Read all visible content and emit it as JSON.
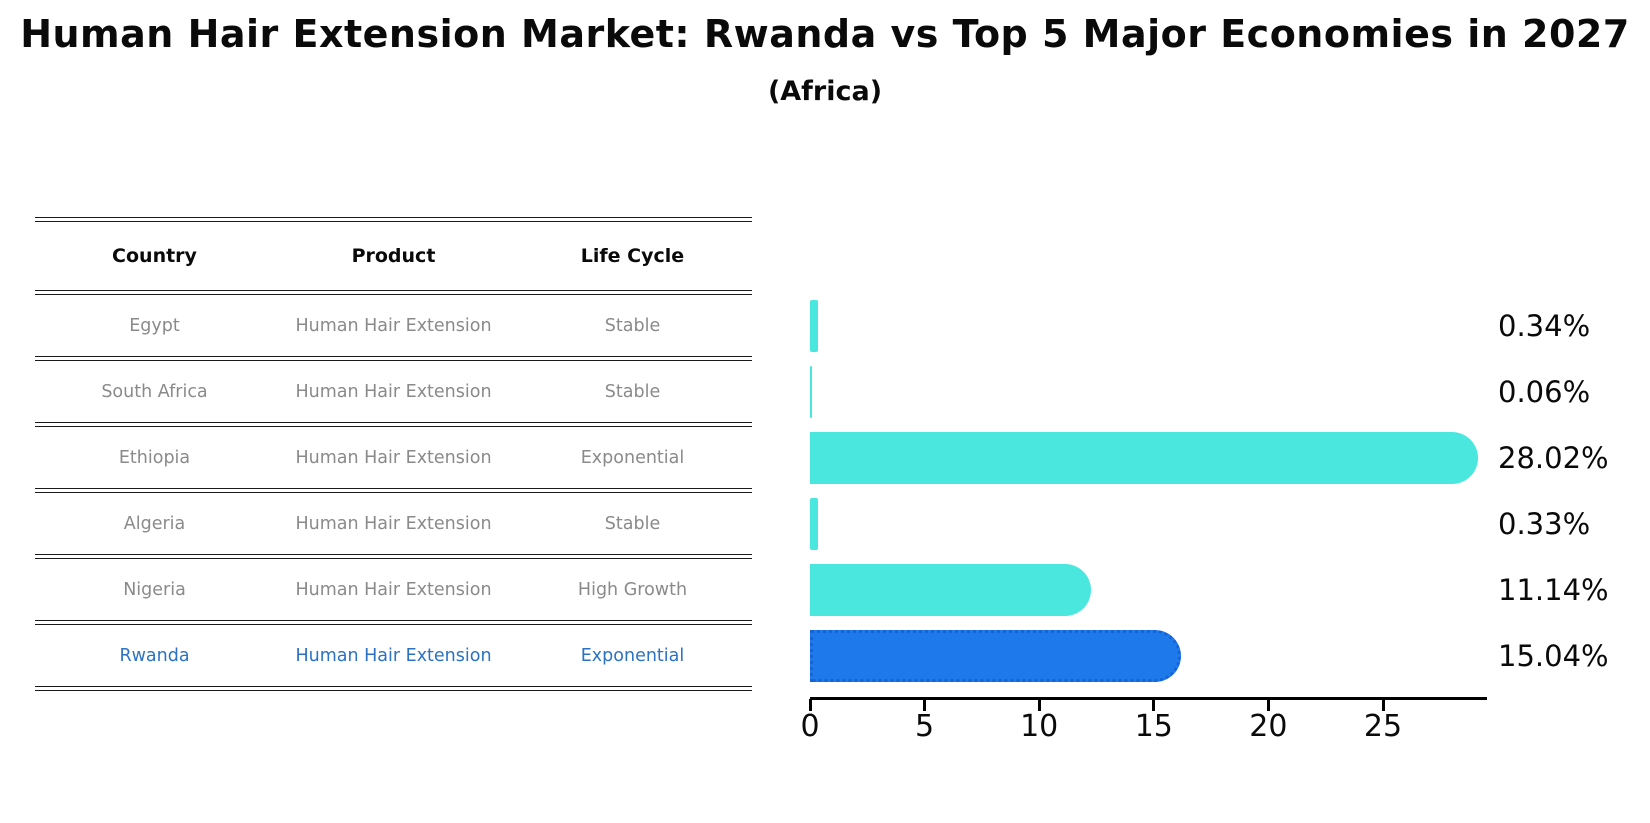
{
  "title": "Human Hair Extension Market: Rwanda vs Top 5 Major Economies in 2027",
  "subtitle": "(Africa)",
  "table": {
    "headers": {
      "country": "Country",
      "product": "Product",
      "life_cycle": "Life Cycle"
    },
    "rows": [
      {
        "country": "Egypt",
        "product": "Human Hair Extension",
        "life_cycle": "Stable",
        "highlight": false
      },
      {
        "country": "South Africa",
        "product": "Human Hair Extension",
        "life_cycle": "Stable",
        "highlight": false
      },
      {
        "country": "Ethiopia",
        "product": "Human Hair Extension",
        "life_cycle": "Exponential",
        "highlight": false
      },
      {
        "country": "Algeria",
        "product": "Human Hair Extension",
        "life_cycle": "Stable",
        "highlight": false
      },
      {
        "country": "Nigeria",
        "product": "Human Hair Extension",
        "life_cycle": "High Growth",
        "highlight": false
      },
      {
        "country": "Rwanda",
        "product": "Human Hair Extension",
        "life_cycle": "Exponential",
        "highlight": true
      }
    ]
  },
  "chart_data": {
    "type": "bar",
    "orientation": "horizontal",
    "title": "Human Hair Extension Market: Rwanda vs Top 5 Major Economies in 2027 (Africa)",
    "categories": [
      "Egypt",
      "South Africa",
      "Ethiopia",
      "Algeria",
      "Nigeria",
      "Rwanda"
    ],
    "values": [
      0.34,
      0.06,
      28.02,
      0.33,
      11.14,
      15.04
    ],
    "value_labels": [
      "0.34%",
      "0.06%",
      "28.02%",
      "0.33%",
      "11.14%",
      "15.04%"
    ],
    "x_tick_labels": [
      "0",
      "5",
      "10",
      "15",
      "20",
      "25"
    ],
    "x_tick_values": [
      0,
      5,
      10,
      15,
      20,
      25
    ],
    "xlim": [
      0,
      29.5
    ],
    "grid": false,
    "legend": "none",
    "highlight": {
      "index": 5,
      "category": "Rwanda"
    }
  },
  "colors": {
    "bar_cyan": "#4AE7DF",
    "bar_blue": "#1E7AEB",
    "bar_blue_border": "#1563D6",
    "row_text": "#8A8A8A",
    "highlight_text": "#2B72C4",
    "axis": "#000000"
  }
}
